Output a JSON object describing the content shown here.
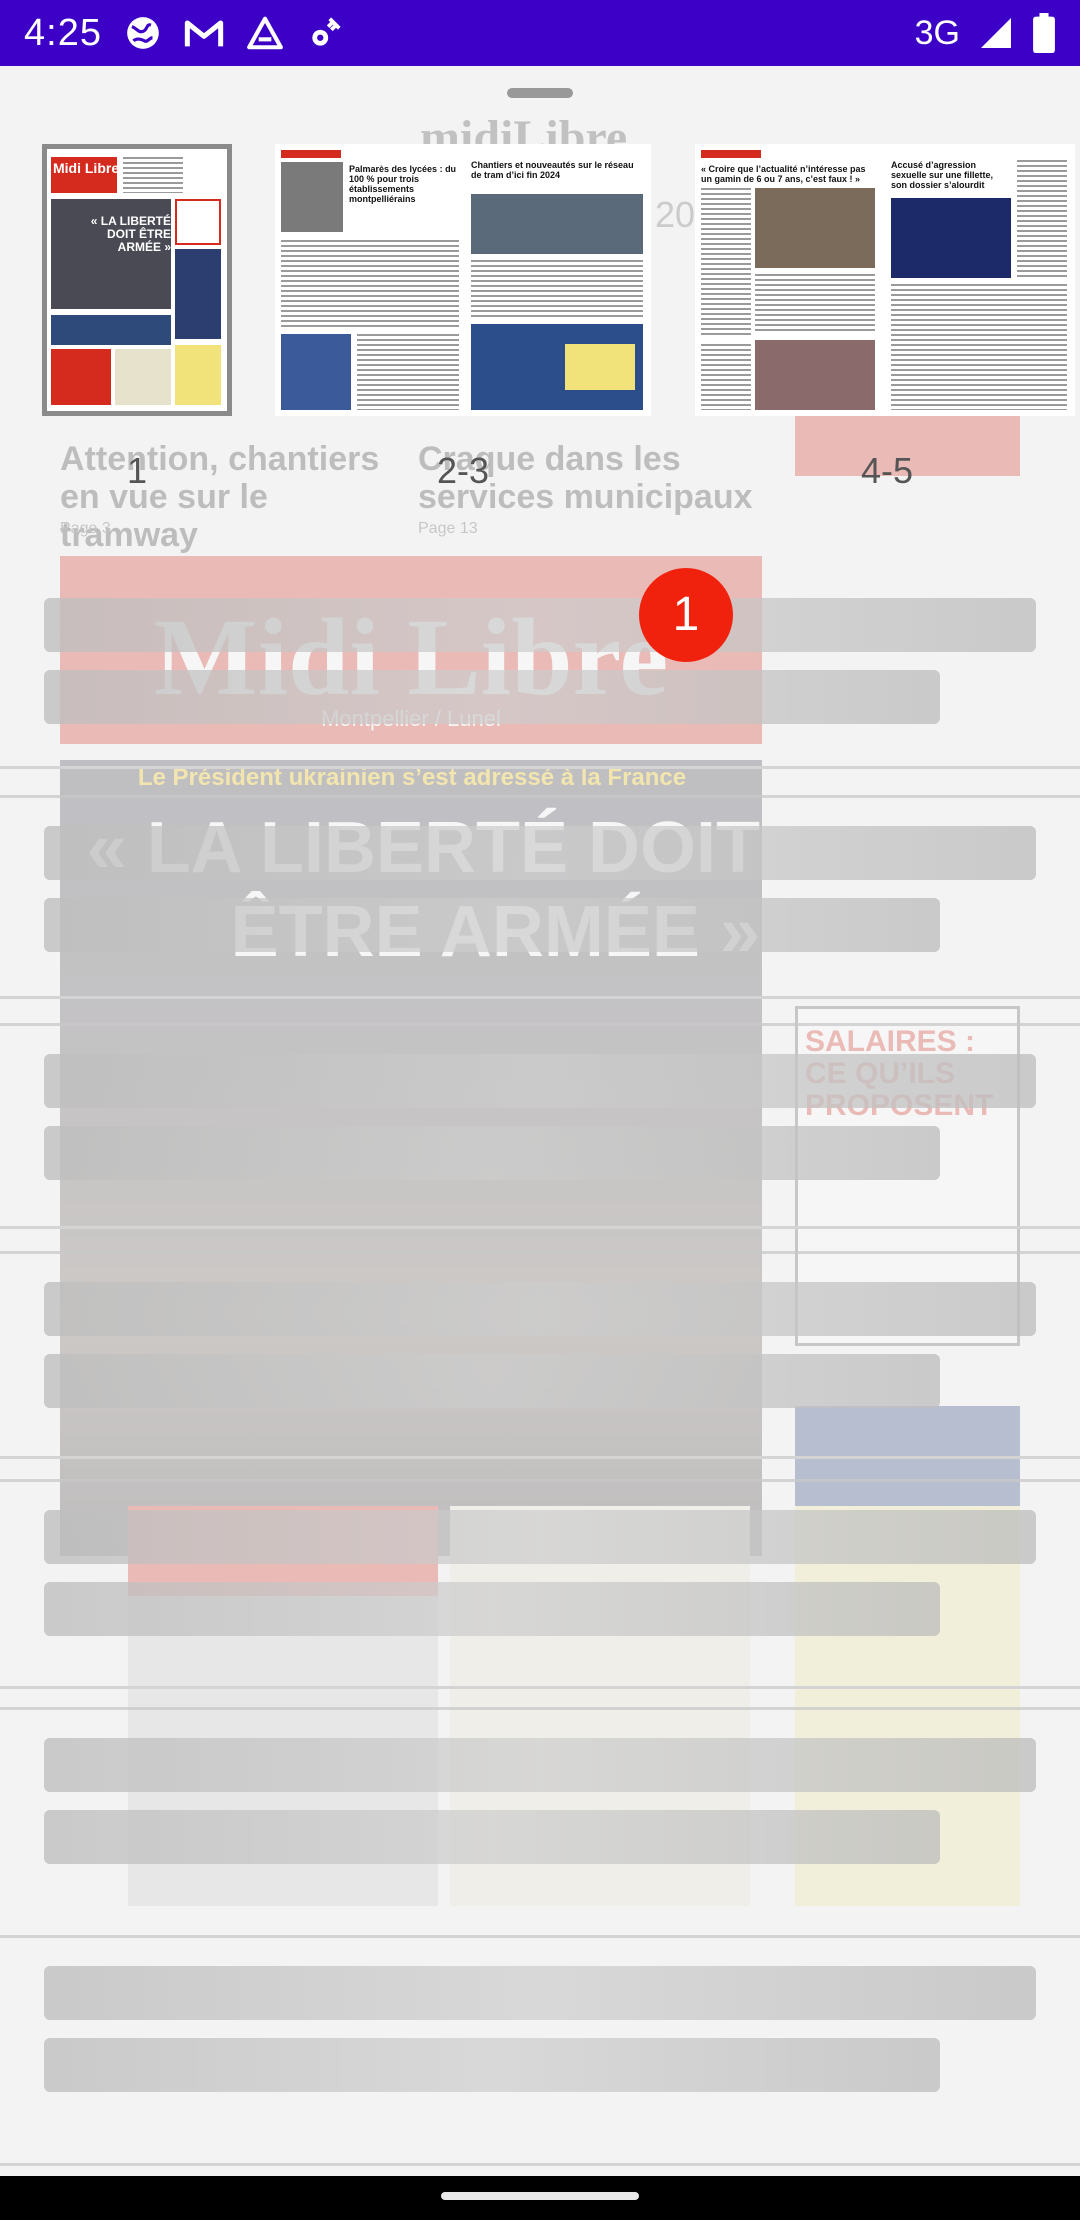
{
  "status_bar": {
    "time": "4:25",
    "network": "3G",
    "icons": [
      "globe-icon",
      "gmail-icon",
      "triangle-app-icon",
      "gear-satellite-icon",
      "signal-icon",
      "battery-icon"
    ]
  },
  "background_page": {
    "logo": "midiLibre",
    "date_fragment": "20",
    "headline_left": "Attention, chantiers en vue sur le tramway",
    "headline_right": "Craque dans les services municipaux",
    "page_left": "Page 3",
    "page_right": "Page 13",
    "masthead": "Midi Libre",
    "masthead_sub": "Montpellier / Lunel",
    "top_banner": "Le Président ukrainien s’est adressé à la France",
    "big_quote": "« LA LIBERTÉ DOIT ÊTRE ARMÉE »",
    "side_title": "SALAIRES : CE QU’ILS PROPOSENT"
  },
  "thumbnails": [
    {
      "label": "1",
      "selected": true,
      "headline": "« LA LIBERTÉ DOIT ÊTRE ARMÉE »",
      "masthead": "Midi Libre"
    },
    {
      "label": "2-3",
      "selected": false,
      "headline": "Palmarès des lycées : du 100 % pour trois établissements montpelliérains",
      "headline_b": "Chantiers et nouveautés sur le réseau de tram d’ici fin 2024"
    },
    {
      "label": "4-5",
      "selected": false,
      "headline": "« Croire que l’actualité n’intéresse pas un gamin de 6 ou 7 ans, c’est faux ! »",
      "headline_b": "Accusé d’agression sexuelle sur une fillette, son dossier s’alourdit"
    }
  ],
  "badge": {
    "count": "1"
  },
  "skeleton_rows": 7,
  "colors": {
    "status_bar": "#3c00c7",
    "badge": "#f0220e",
    "brand_red": "#d52b1e"
  }
}
